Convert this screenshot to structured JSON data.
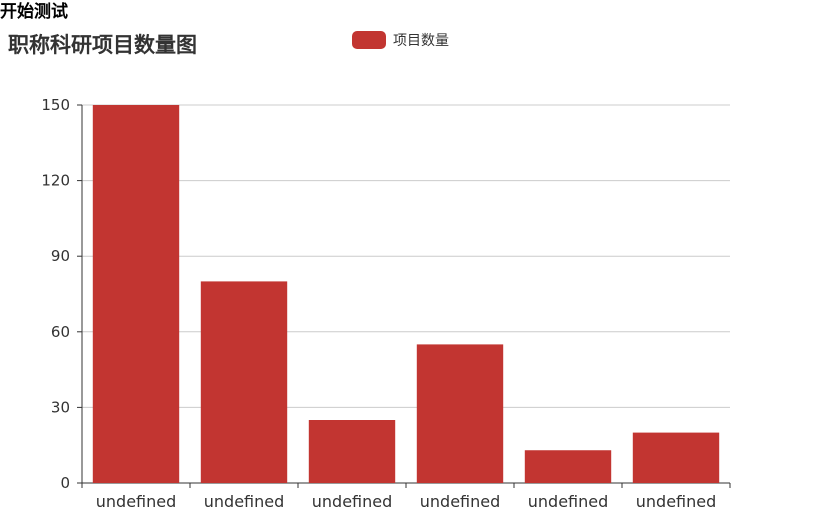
{
  "page": {
    "heading": "开始测试"
  },
  "colors": {
    "bar": "#c23531",
    "grid": "#cccccc",
    "axis": "#333333",
    "text": "#333333"
  },
  "chart_data": {
    "type": "bar",
    "title": "职称科研项目数量图",
    "legend": [
      "项目数量"
    ],
    "legend_position": "top-center",
    "categories": [
      "undefined",
      "undefined",
      "undefined",
      "undefined",
      "undefined",
      "undefined"
    ],
    "series": [
      {
        "name": "项目数量",
        "values": [
          150,
          80,
          25,
          55,
          13,
          20
        ]
      }
    ],
    "ylim": [
      0,
      150
    ],
    "yticks": [
      0,
      30,
      60,
      90,
      120,
      150
    ],
    "grid": true,
    "xlabel": "",
    "ylabel": ""
  }
}
